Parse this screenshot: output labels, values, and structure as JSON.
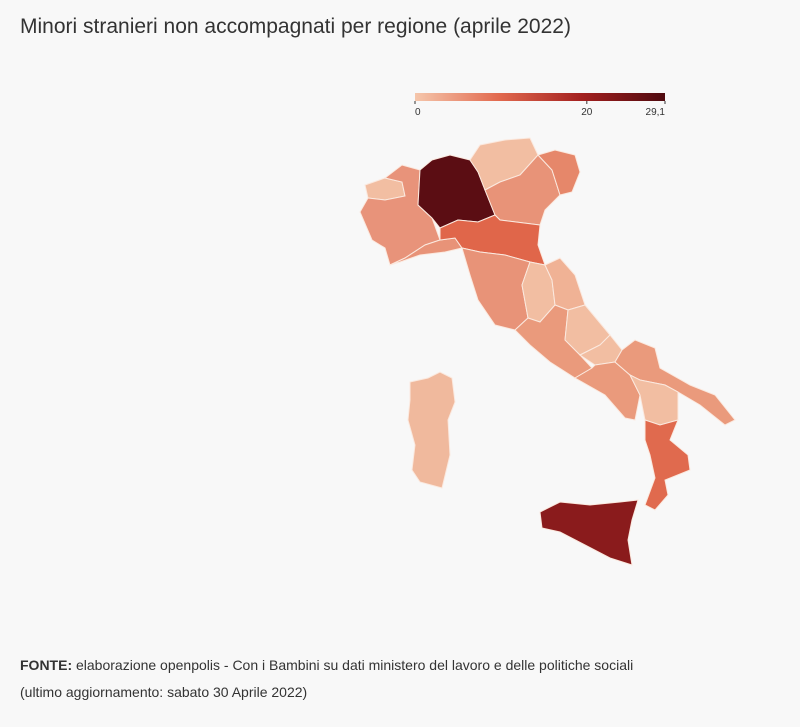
{
  "chart_data": {
    "type": "choropleth",
    "title": "Minori stranieri non accompagnati per regione (aprile 2022)",
    "legend": {
      "lim": [
        0,
        29.1
      ],
      "ticks": [
        0,
        20,
        {
          "value": 29.1,
          "label": "29,1"
        }
      ],
      "colors": [
        "#f5c6ab",
        "#e26a4f",
        "#a3201f",
        "#4f0a0f"
      ]
    },
    "source_label": "FONTE:",
    "source": "elaborazione openpolis - Con i Bambini su dati ministero del lavoro e delle politiche sociali",
    "updated": "(ultimo aggiornamento: sabato 30 Aprile 2022)"
  }
}
